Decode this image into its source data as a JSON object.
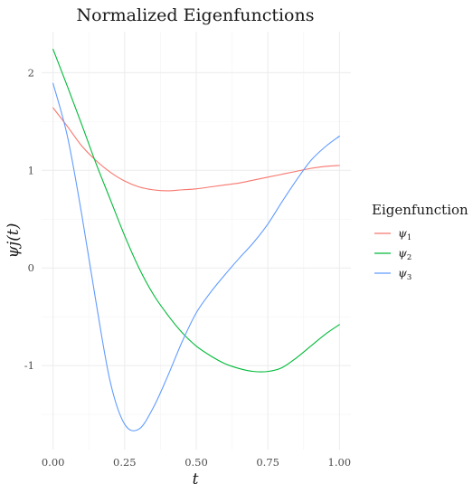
{
  "chart_data": {
    "type": "line",
    "title": "Normalized Eigenfunctions",
    "xlabel": "t",
    "ylabel": "ψj(t)",
    "xlim": [
      -0.04,
      1.04
    ],
    "ylim": [
      -1.86,
      2.42
    ],
    "x_ticks": [
      0.0,
      0.25,
      0.5,
      0.75,
      1.0
    ],
    "x_tick_labels": [
      "0.00",
      "0.25",
      "0.50",
      "0.75",
      "1.00"
    ],
    "y_ticks": [
      -1,
      0,
      1,
      2
    ],
    "y_tick_labels": [
      "-1",
      "0",
      "1",
      "2"
    ],
    "grid": true,
    "legend": {
      "title": "Eigenfunction",
      "placement": "right",
      "entries": [
        {
          "base": "ψ",
          "sub": "1",
          "color": "#F8766D"
        },
        {
          "base": "ψ",
          "sub": "2",
          "color": "#00BA38"
        },
        {
          "base": "ψ",
          "sub": "3",
          "color": "#619CFF"
        }
      ]
    },
    "x": [
      0.0,
      0.05,
      0.1,
      0.15,
      0.2,
      0.25,
      0.3,
      0.35,
      0.4,
      0.45,
      0.5,
      0.55,
      0.6,
      0.65,
      0.7,
      0.75,
      0.8,
      0.85,
      0.9,
      0.95,
      1.0
    ],
    "series": [
      {
        "name": "ψ1",
        "color": "#F8766D",
        "values": [
          1.64,
          1.45,
          1.25,
          1.1,
          0.98,
          0.89,
          0.83,
          0.8,
          0.79,
          0.8,
          0.81,
          0.83,
          0.85,
          0.87,
          0.9,
          0.93,
          0.96,
          0.99,
          1.02,
          1.04,
          1.05
        ]
      },
      {
        "name": "ψ2",
        "color": "#00BA38",
        "values": [
          2.24,
          1.86,
          1.47,
          1.07,
          0.7,
          0.33,
          0.0,
          -0.27,
          -0.48,
          -0.66,
          -0.8,
          -0.9,
          -0.98,
          -1.03,
          -1.06,
          -1.06,
          -1.02,
          -0.92,
          -0.8,
          -0.68,
          -0.58
        ]
      },
      {
        "name": "ψ3",
        "color": "#619CFF",
        "values": [
          1.89,
          1.35,
          0.55,
          -0.35,
          -1.17,
          -1.6,
          -1.65,
          -1.43,
          -1.11,
          -0.76,
          -0.46,
          -0.25,
          -0.07,
          0.1,
          0.26,
          0.45,
          0.68,
          0.9,
          1.1,
          1.24,
          1.35
        ]
      }
    ]
  }
}
